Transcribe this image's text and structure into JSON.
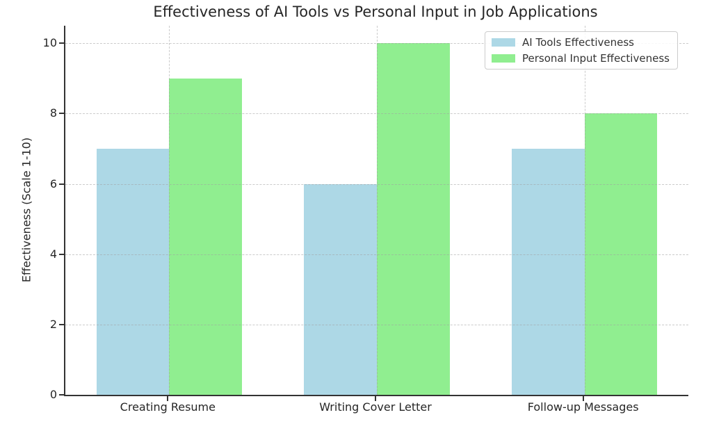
{
  "chart_data": {
    "type": "bar",
    "title": "Effectiveness of AI Tools vs Personal Input in Job Applications",
    "xlabel": "",
    "ylabel": "Effectiveness (Scale 1-10)",
    "categories": [
      "Creating Resume",
      "Writing Cover Letter",
      "Follow-up Messages"
    ],
    "series": [
      {
        "name": "AI Tools Effectiveness",
        "color": "#ADD8E6",
        "values": [
          7,
          6,
          7
        ]
      },
      {
        "name": "Personal Input Effectiveness",
        "color": "#90EE90",
        "values": [
          9,
          10,
          8
        ]
      }
    ],
    "ylim": [
      0,
      10.5
    ],
    "yticks": [
      0,
      2,
      4,
      6,
      8,
      10
    ],
    "bar_width": 0.35,
    "grid": "both",
    "grid_style": "dashed",
    "legend_position": "upper right",
    "spine_color": "#333333",
    "text_color": "#262626"
  }
}
